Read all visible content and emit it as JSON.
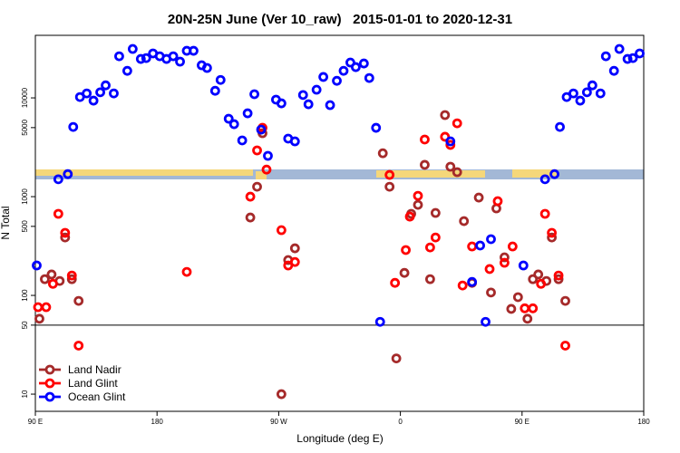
{
  "chart_data": {
    "type": "scatter",
    "title": "20N-25N June (Ver 10_raw)   2015-01-01 to 2020-12-31",
    "x_label": "Longitude (deg E)",
    "y_label": "N Total",
    "log_y": true,
    "legend": "lower left",
    "reference_line": 50,
    "xlim": [
      90,
      540
    ],
    "xticks": [
      {
        "value": 90,
        "label": "90 E"
      },
      180,
      {
        "value": 270,
        "label": "90 W"
      },
      {
        "value": 360,
        "label": "0"
      },
      {
        "value": 450,
        "label": "90 E"
      },
      {
        "value": 540,
        "label": "180"
      }
    ],
    "ylim": [
      6.7,
      43000
    ],
    "yticks": [
      10,
      50,
      100,
      500,
      1000,
      5000,
      10000
    ],
    "series": [
      {
        "name": "Land Nadir",
        "color": "#a52a2a",
        "x": [
          93,
          97,
          102,
          108,
          112,
          117,
          122,
          249,
          254,
          258,
          277,
          282,
          272,
          347,
          352,
          357,
          363,
          368,
          373,
          378,
          382,
          386,
          393,
          397,
          402,
          407,
          413,
          418,
          427,
          431,
          437,
          442,
          447,
          454,
          458,
          462,
          468,
          472,
          477,
          482
        ],
        "values": [
          58,
          146,
          163,
          140,
          386,
          146,
          88,
          615,
          1260,
          4390,
          228,
          300,
          10,
          2750,
          1260,
          23,
          169,
          670,
          826,
          2100,
          146,
          684,
          6700,
          2010,
          1770,
          565,
          134,
          979,
          107,
          760,
          243,
          73,
          96,
          58,
          146,
          163,
          140,
          386,
          146,
          88
        ]
      },
      {
        "name": "Land Glint",
        "color": "#ff0000",
        "x": [
          92,
          98,
          103,
          107,
          112,
          117,
          122,
          202,
          249,
          254,
          258,
          261,
          272,
          277,
          282,
          352,
          356,
          364,
          367,
          373,
          378,
          382,
          386,
          393,
          397,
          402,
          406,
          413,
          426,
          432,
          437,
          443,
          452,
          458,
          464,
          467,
          472,
          477,
          482
        ],
        "values": [
          76,
          76,
          131,
          670,
          430,
          159,
          31,
          173,
          1000,
          2940,
          4980,
          1880,
          458,
          201,
          218,
          1660,
          134,
          288,
          628,
          1020,
          3790,
          306,
          386,
          4040,
          3340,
          5530,
          126,
          313,
          185,
          900,
          214,
          313,
          74,
          74,
          131,
          670,
          430,
          159,
          31
        ]
      },
      {
        "name": "Ocean Glint",
        "color": "#0000ff",
        "x": [
          91,
          107,
          114,
          118,
          123,
          128,
          133,
          138,
          142,
          148,
          152,
          158,
          162,
          168,
          172,
          177,
          182,
          187,
          192,
          197,
          202,
          207,
          213,
          217,
          223,
          227,
          233,
          237,
          243,
          247,
          252,
          257,
          262,
          268,
          272,
          277,
          282,
          288,
          292,
          298,
          303,
          308,
          313,
          318,
          323,
          327,
          333,
          337,
          342,
          345,
          397,
          413,
          419,
          423,
          427,
          451,
          467,
          474,
          478,
          483,
          488,
          493,
          498,
          502,
          508,
          512,
          518,
          522,
          528,
          532,
          537
        ],
        "values": [
          201,
          1500,
          1690,
          5080,
          10200,
          11100,
          9380,
          11400,
          13400,
          11100,
          26400,
          18800,
          31300,
          24800,
          25300,
          28200,
          26400,
          24800,
          26400,
          23300,
          30000,
          30000,
          21400,
          20100,
          11800,
          15200,
          6150,
          5420,
          3710,
          6980,
          10900,
          4770,
          2590,
          9600,
          8810,
          3870,
          3630,
          10700,
          8620,
          12100,
          16300,
          8450,
          14900,
          18800,
          22800,
          20500,
          22300,
          15900,
          4980,
          54,
          3630,
          137,
          320,
          54,
          371,
          201,
          1500,
          1690,
          5080,
          10200,
          11100,
          9380,
          11400,
          13400,
          11100,
          26400,
          18800,
          31300,
          24800,
          25300,
          28200
        ]
      }
    ]
  }
}
